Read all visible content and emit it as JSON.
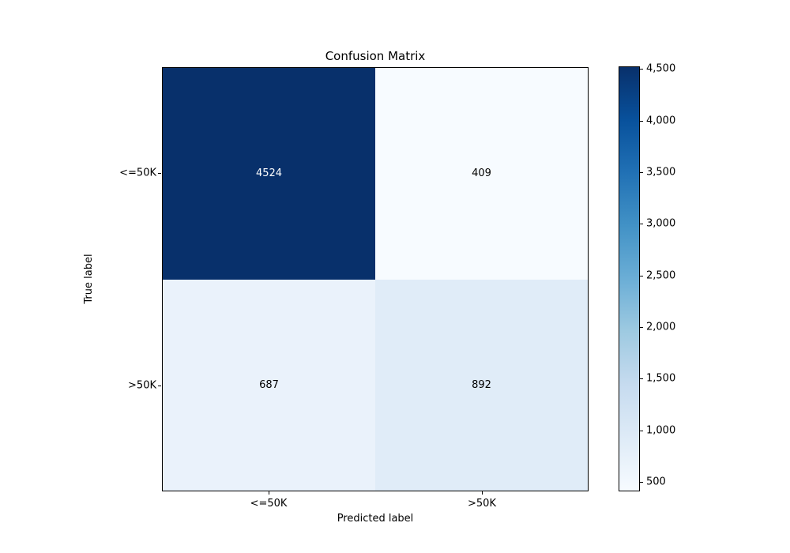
{
  "figure": {
    "background": "#ffffff"
  },
  "chart_data": {
    "type": "heatmap",
    "title": "Confusion Matrix",
    "xlabel": "Predicted label",
    "ylabel": "True label",
    "categories_x": [
      "<=50K",
      ">50K"
    ],
    "categories_y": [
      "<=50K",
      ">50K"
    ],
    "matrix": [
      [
        4524,
        409
      ],
      [
        687,
        892
      ]
    ],
    "vmin": 409,
    "vmax": 4524,
    "colormap": "Blues",
    "grid": false,
    "cell_colors": [
      [
        "#08306b",
        "#f7fbff"
      ],
      [
        "#eaf2fb",
        "#e0ecf8"
      ]
    ],
    "cell_text_colors": [
      [
        "#ffffff",
        "#000000"
      ],
      [
        "#000000",
        "#000000"
      ]
    ],
    "colorbar": {
      "position": "right",
      "ticks": [
        {
          "value": 500,
          "label": "500"
        },
        {
          "value": 1000,
          "label": "1,000"
        },
        {
          "value": 1500,
          "label": "1,500"
        },
        {
          "value": 2000,
          "label": "2,000"
        },
        {
          "value": 2500,
          "label": "2,500"
        },
        {
          "value": 3000,
          "label": "3,000"
        },
        {
          "value": 3500,
          "label": "3,500"
        },
        {
          "value": 4000,
          "label": "4,000"
        },
        {
          "value": 4500,
          "label": "4,500"
        }
      ],
      "gradient_stops": [
        {
          "pos": 0,
          "color": "#f7fbff"
        },
        {
          "pos": 12.5,
          "color": "#deebf7"
        },
        {
          "pos": 25,
          "color": "#c6dbef"
        },
        {
          "pos": 37.5,
          "color": "#9ecae1"
        },
        {
          "pos": 50,
          "color": "#6baed6"
        },
        {
          "pos": 62.5,
          "color": "#4292c6"
        },
        {
          "pos": 75,
          "color": "#2171b5"
        },
        {
          "pos": 87.5,
          "color": "#08519c"
        },
        {
          "pos": 100,
          "color": "#08306b"
        }
      ]
    }
  }
}
